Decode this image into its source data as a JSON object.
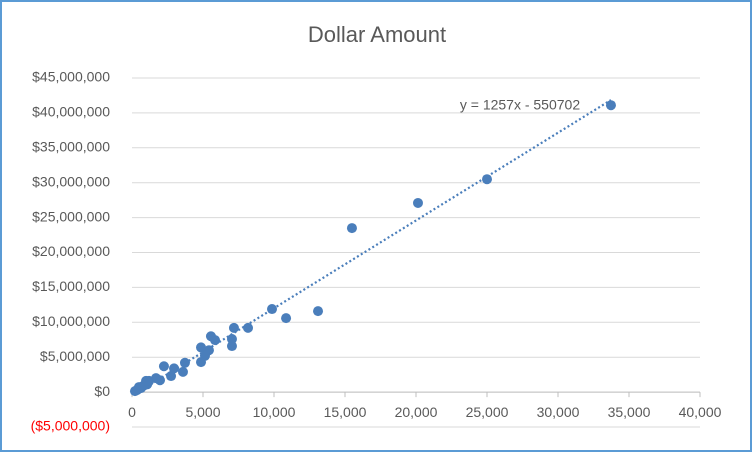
{
  "chart_data": {
    "type": "scatter",
    "title": "Dollar Amount",
    "series": [
      {
        "name": "Dollar Amount",
        "color": "#4a7ebb",
        "x": [
          33730,
          25000,
          20140,
          15490,
          13100,
          10850,
          9860,
          8170,
          7180,
          7040,
          7040,
          5850,
          5560,
          5420,
          5140,
          4860,
          4860,
          3730,
          3590,
          2960,
          2750,
          2250,
          1970,
          1690,
          1200,
          1130,
          1060,
          990,
          770,
          630,
          490,
          350,
          210
        ],
        "values": [
          41100000,
          30500000,
          27100000,
          23500000,
          11600000,
          10600000,
          11900000,
          9200000,
          9200000,
          7600000,
          6600000,
          7450000,
          8000000,
          6000000,
          5200000,
          6400000,
          4300000,
          4200000,
          2900000,
          3400000,
          2300000,
          3700000,
          1700000,
          2000000,
          1600000,
          1400000,
          1100000,
          1600000,
          860000,
          570000,
          720000,
          290000,
          140000
        ]
      }
    ],
    "trendline": {
      "slope": 1257,
      "intercept": -550702,
      "label": "y = 1257x - 550702"
    },
    "xlim": [
      0,
      40000
    ],
    "xticks": [
      0,
      {
        "value": 5000,
        "label": "5,000"
      },
      {
        "value": 10000,
        "label": "10,000"
      },
      {
        "value": 15000,
        "label": "15,000"
      },
      {
        "value": 20000,
        "label": "20,000"
      },
      {
        "value": 25000,
        "label": "25,000"
      },
      {
        "value": 30000,
        "label": "30,000"
      },
      {
        "value": 35000,
        "label": "35,000"
      },
      {
        "value": 40000,
        "label": "40,000"
      }
    ],
    "ylim": [
      -5000000,
      45000000
    ],
    "yticks": [
      {
        "value": -5000000,
        "label": "($5,000,000)"
      },
      {
        "value": 0,
        "label": "$0"
      },
      {
        "value": 5000000,
        "label": "$5,000,000"
      },
      {
        "value": 10000000,
        "label": "$10,000,000"
      },
      {
        "value": 15000000,
        "label": "$15,000,000"
      },
      {
        "value": 20000000,
        "label": "$20,000,000"
      },
      {
        "value": 25000000,
        "label": "$25,000,000"
      },
      {
        "value": 30000000,
        "label": "$30,000,000"
      },
      {
        "value": 35000000,
        "label": "$35,000,000"
      },
      {
        "value": 40000000,
        "label": "$40,000,000"
      },
      {
        "value": 45000000,
        "label": "$45,000,000"
      }
    ],
    "grid": true,
    "negative_label_color": "#ff0000"
  }
}
